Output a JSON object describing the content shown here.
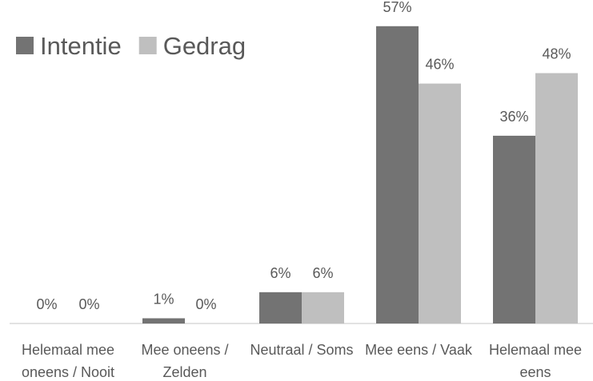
{
  "chart_data": {
    "type": "bar",
    "categories": [
      "Helemaal mee oneens / Nooit",
      "Mee oneens / Zelden",
      "Neutraal / Soms",
      "Mee eens / Vaak",
      "Helemaal mee eens"
    ],
    "series": [
      {
        "name": "Intentie",
        "color": "#737373",
        "values": [
          0,
          1,
          6,
          57,
          36
        ],
        "value_labels": [
          "0%",
          "1%",
          "6%",
          "57%",
          "36%"
        ]
      },
      {
        "name": "Gedrag",
        "color": "#bfbfbf",
        "values": [
          0,
          0,
          6,
          46,
          48
        ],
        "value_labels": [
          "0%",
          "0%",
          "6%",
          "46%",
          "48%"
        ]
      }
    ],
    "legend": "top-left"
  }
}
